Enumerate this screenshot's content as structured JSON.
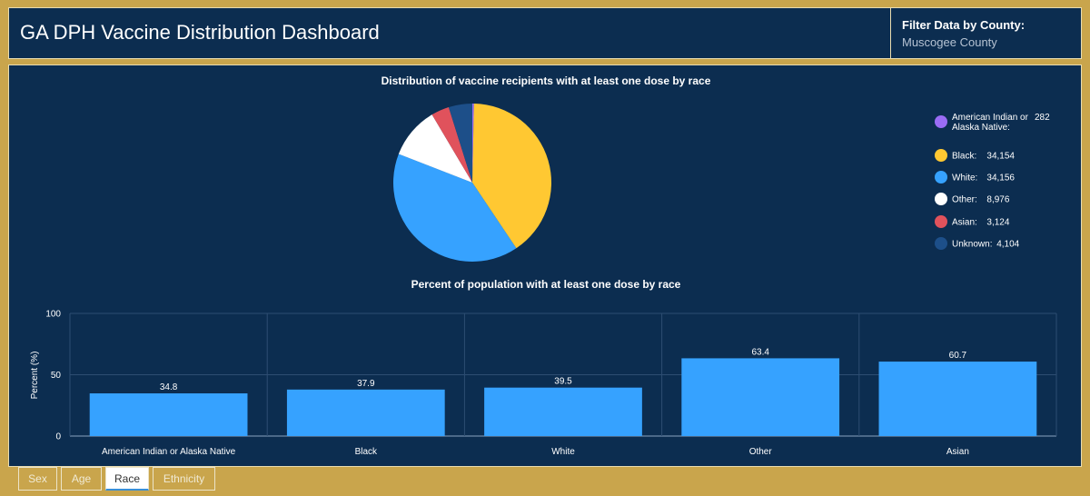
{
  "header": {
    "title": "GA DPH Vaccine Distribution Dashboard",
    "filter_label": "Filter Data by County:",
    "filter_value": "Muscogee County"
  },
  "tabs": [
    {
      "label": "Sex",
      "active": false
    },
    {
      "label": "Age",
      "active": false
    },
    {
      "label": "Race",
      "active": true
    },
    {
      "label": "Ethnicity",
      "active": false
    }
  ],
  "colors": {
    "background": "#c9a54c",
    "panel": "#0c2d50",
    "bar": "#36a2ff"
  },
  "chart_data": [
    {
      "type": "pie",
      "title": "Distribution of vaccine recipients with at least one dose by race",
      "legend_position": "right",
      "slices": [
        {
          "name": "American Indian or Alaska Native:",
          "value": 282,
          "display": "282",
          "color": "#9a6cf5"
        },
        {
          "name": "Black:",
          "value": 34154,
          "display": "34,154",
          "color": "#ffc832"
        },
        {
          "name": "White:",
          "value": 34156,
          "display": "34,156",
          "color": "#36a2ff"
        },
        {
          "name": "Other:",
          "value": 8976,
          "display": "8,976",
          "color": "#ffffff"
        },
        {
          "name": "Asian:",
          "value": 3124,
          "display": "3,124",
          "color": "#e0525c"
        },
        {
          "name": "Unknown:",
          "value": 4104,
          "display": "4,104",
          "color": "#1d4f89"
        }
      ]
    },
    {
      "type": "bar",
      "title": "Percent of population with at least one dose by race",
      "categories": [
        "American Indian or Alaska Native",
        "Black",
        "White",
        "Other",
        "Asian"
      ],
      "values": [
        34.8,
        37.9,
        39.5,
        63.4,
        60.7
      ],
      "value_labels": [
        "34.8",
        "37.9",
        "39.5",
        "63.4",
        "60.7"
      ],
      "ylabel": "Percent (%)",
      "ylim": [
        0,
        100
      ],
      "yticks": [
        0,
        50,
        100
      ],
      "ytick_labels": [
        "0",
        "50",
        "100"
      ],
      "grid": true
    }
  ]
}
